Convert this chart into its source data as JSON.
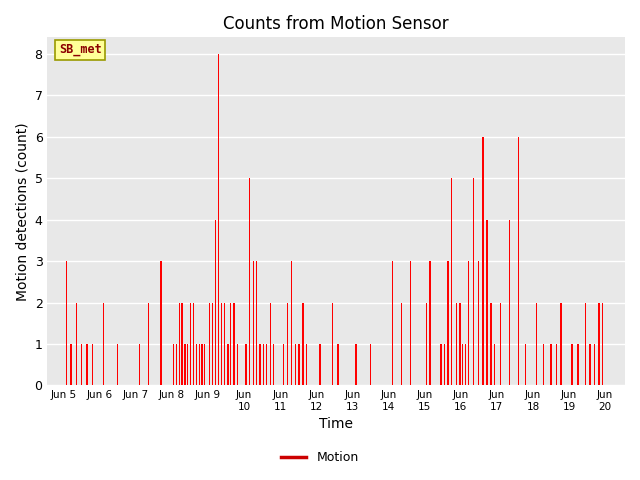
{
  "title": "Counts from Motion Sensor",
  "xlabel": "Time",
  "ylabel": "Motion detections (count)",
  "ylim": [
    0,
    8.4
  ],
  "yticks": [
    0.0,
    1.0,
    2.0,
    3.0,
    4.0,
    5.0,
    6.0,
    7.0,
    8.0
  ],
  "bar_color": "#FF0000",
  "legend_label": "Motion",
  "legend_line_color": "#CC0000",
  "annotation_text": "SB_met",
  "annotation_bg": "#FFFF99",
  "annotation_border": "#999900",
  "annotation_text_color": "#8B0000",
  "plot_bg_color": "#E8E8E8",
  "fig_bg_color": "#FFFFFF",
  "grid_color": "#FFFFFF",
  "bar_data": [
    {
      "x": 4.08,
      "val": 3
    },
    {
      "x": 4.2,
      "val": 1
    },
    {
      "x": 4.35,
      "val": 2
    },
    {
      "x": 4.5,
      "val": 1
    },
    {
      "x": 4.65,
      "val": 1
    },
    {
      "x": 4.8,
      "val": 1
    },
    {
      "x": 5.1,
      "val": 2
    },
    {
      "x": 5.5,
      "val": 1
    },
    {
      "x": 6.1,
      "val": 1
    },
    {
      "x": 6.35,
      "val": 2
    },
    {
      "x": 6.7,
      "val": 3
    },
    {
      "x": 7.05,
      "val": 1
    },
    {
      "x": 7.12,
      "val": 1
    },
    {
      "x": 7.2,
      "val": 2
    },
    {
      "x": 7.28,
      "val": 2
    },
    {
      "x": 7.36,
      "val": 1
    },
    {
      "x": 7.44,
      "val": 1
    },
    {
      "x": 7.52,
      "val": 2
    },
    {
      "x": 7.6,
      "val": 2
    },
    {
      "x": 7.68,
      "val": 1
    },
    {
      "x": 7.76,
      "val": 1
    },
    {
      "x": 7.83,
      "val": 1
    },
    {
      "x": 7.9,
      "val": 1
    },
    {
      "x": 8.05,
      "val": 2
    },
    {
      "x": 8.13,
      "val": 2
    },
    {
      "x": 8.2,
      "val": 4
    },
    {
      "x": 8.28,
      "val": 8
    },
    {
      "x": 8.37,
      "val": 2
    },
    {
      "x": 8.46,
      "val": 2
    },
    {
      "x": 8.55,
      "val": 1
    },
    {
      "x": 8.63,
      "val": 2
    },
    {
      "x": 8.72,
      "val": 2
    },
    {
      "x": 8.81,
      "val": 1
    },
    {
      "x": 9.05,
      "val": 1
    },
    {
      "x": 9.15,
      "val": 5
    },
    {
      "x": 9.25,
      "val": 3
    },
    {
      "x": 9.35,
      "val": 3
    },
    {
      "x": 9.44,
      "val": 1
    },
    {
      "x": 9.53,
      "val": 1
    },
    {
      "x": 9.62,
      "val": 1
    },
    {
      "x": 9.72,
      "val": 2
    },
    {
      "x": 9.82,
      "val": 1
    },
    {
      "x": 10.1,
      "val": 1
    },
    {
      "x": 10.2,
      "val": 2
    },
    {
      "x": 10.32,
      "val": 3
    },
    {
      "x": 10.42,
      "val": 1
    },
    {
      "x": 10.52,
      "val": 1
    },
    {
      "x": 10.63,
      "val": 2
    },
    {
      "x": 10.73,
      "val": 1
    },
    {
      "x": 11.1,
      "val": 1
    },
    {
      "x": 11.45,
      "val": 2
    },
    {
      "x": 11.6,
      "val": 1
    },
    {
      "x": 12.1,
      "val": 1
    },
    {
      "x": 12.5,
      "val": 1
    },
    {
      "x": 13.1,
      "val": 3
    },
    {
      "x": 13.35,
      "val": 2
    },
    {
      "x": 13.6,
      "val": 3
    },
    {
      "x": 14.05,
      "val": 2
    },
    {
      "x": 14.15,
      "val": 3
    },
    {
      "x": 14.45,
      "val": 1
    },
    {
      "x": 14.55,
      "val": 1
    },
    {
      "x": 14.65,
      "val": 3
    },
    {
      "x": 14.75,
      "val": 5
    },
    {
      "x": 14.88,
      "val": 2
    },
    {
      "x": 14.98,
      "val": 2
    },
    {
      "x": 15.05,
      "val": 1
    },
    {
      "x": 15.13,
      "val": 1
    },
    {
      "x": 15.22,
      "val": 3
    },
    {
      "x": 15.35,
      "val": 5
    },
    {
      "x": 15.5,
      "val": 3
    },
    {
      "x": 15.62,
      "val": 6
    },
    {
      "x": 15.73,
      "val": 4
    },
    {
      "x": 15.84,
      "val": 2
    },
    {
      "x": 15.93,
      "val": 1
    },
    {
      "x": 16.1,
      "val": 2
    },
    {
      "x": 16.35,
      "val": 4
    },
    {
      "x": 16.6,
      "val": 6
    },
    {
      "x": 16.8,
      "val": 1
    },
    {
      "x": 17.1,
      "val": 2
    },
    {
      "x": 17.3,
      "val": 1
    },
    {
      "x": 17.5,
      "val": 1
    },
    {
      "x": 17.65,
      "val": 1
    },
    {
      "x": 17.78,
      "val": 2
    },
    {
      "x": 18.08,
      "val": 1
    },
    {
      "x": 18.25,
      "val": 1
    },
    {
      "x": 18.45,
      "val": 2
    },
    {
      "x": 18.58,
      "val": 1
    },
    {
      "x": 18.7,
      "val": 1
    },
    {
      "x": 18.83,
      "val": 2
    },
    {
      "x": 18.93,
      "val": 2
    }
  ]
}
